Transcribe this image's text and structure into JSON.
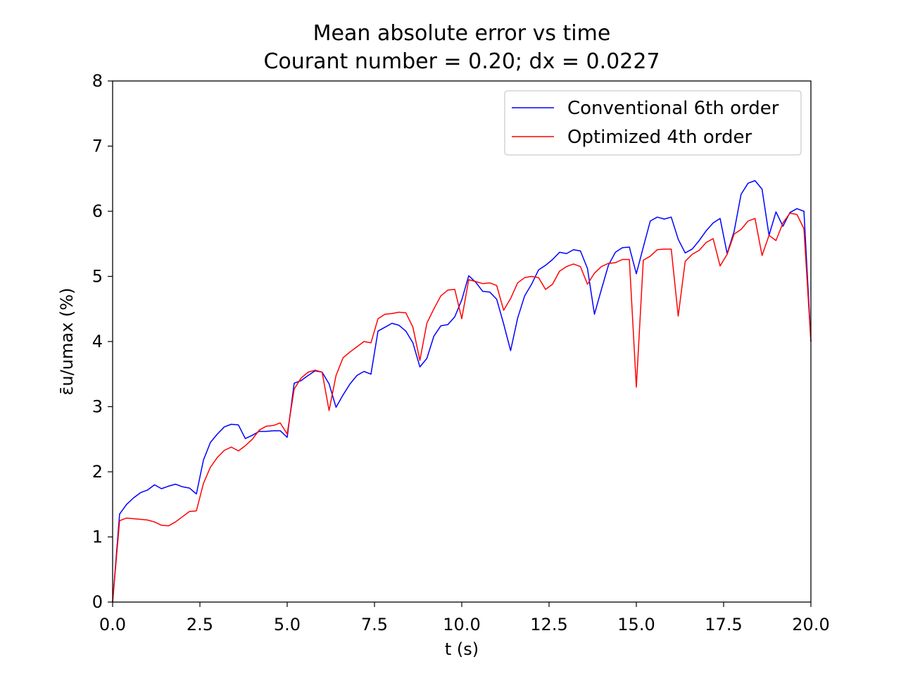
{
  "chart_data": {
    "type": "line",
    "title": "Mean absolute error vs time",
    "subtitle": "Courant number = 0.20; dx = 0.0227",
    "xlabel": "t (s)",
    "ylabel": "ε̄u/umax (%)",
    "xlim": [
      0,
      20
    ],
    "ylim": [
      0,
      8
    ],
    "xticks": [
      "0.0",
      "2.5",
      "5.0",
      "7.5",
      "10.0",
      "12.5",
      "15.0",
      "17.5",
      "20.0"
    ],
    "yticks": [
      "0",
      "1",
      "2",
      "3",
      "4",
      "5",
      "6",
      "7",
      "8"
    ],
    "grid": false,
    "legend_position": "top-right",
    "x": [
      0.0,
      0.2,
      0.4,
      0.6,
      0.8,
      1.0,
      1.2,
      1.4,
      1.6,
      1.8,
      2.0,
      2.2,
      2.4,
      2.6,
      2.8,
      3.0,
      3.2,
      3.4,
      3.6,
      3.8,
      4.0,
      4.2,
      4.4,
      4.6,
      4.8,
      5.0,
      5.2,
      5.4,
      5.6,
      5.8,
      6.0,
      6.2,
      6.4,
      6.6,
      6.8,
      7.0,
      7.2,
      7.4,
      7.6,
      7.8,
      8.0,
      8.2,
      8.4,
      8.6,
      8.8,
      9.0,
      9.2,
      9.4,
      9.6,
      9.8,
      10.0,
      10.2,
      10.4,
      10.6,
      10.8,
      11.0,
      11.2,
      11.4,
      11.6,
      11.8,
      12.0,
      12.2,
      12.4,
      12.6,
      12.8,
      13.0,
      13.2,
      13.4,
      13.6,
      13.8,
      14.0,
      14.2,
      14.4,
      14.6,
      14.8,
      15.0,
      15.2,
      15.4,
      15.6,
      15.8,
      16.0,
      16.2,
      16.4,
      16.6,
      16.8,
      17.0,
      17.2,
      17.4,
      17.6,
      17.8,
      18.0,
      18.2,
      18.4,
      18.6,
      18.8,
      19.0,
      19.2,
      19.4,
      19.6,
      19.8,
      20.0
    ],
    "series": [
      {
        "name": "Conventional 6th order",
        "color": "#0000ff",
        "values": [
          0.0,
          1.35,
          1.5,
          1.6,
          1.68,
          1.72,
          1.8,
          1.74,
          1.78,
          1.81,
          1.77,
          1.75,
          1.66,
          2.18,
          2.45,
          2.58,
          2.69,
          2.73,
          2.72,
          2.51,
          2.56,
          2.62,
          2.62,
          2.63,
          2.63,
          2.53,
          3.36,
          3.4,
          3.48,
          3.55,
          3.53,
          3.35,
          2.99,
          3.18,
          3.35,
          3.48,
          3.54,
          3.5,
          4.16,
          4.22,
          4.28,
          4.25,
          4.16,
          3.98,
          3.61,
          3.74,
          4.08,
          4.24,
          4.26,
          4.38,
          4.64,
          5.01,
          4.91,
          4.77,
          4.76,
          4.65,
          4.27,
          3.86,
          4.36,
          4.7,
          4.88,
          5.1,
          5.17,
          5.26,
          5.37,
          5.35,
          5.41,
          5.39,
          5.12,
          4.42,
          4.8,
          5.17,
          5.37,
          5.44,
          5.45,
          5.04,
          5.45,
          5.85,
          5.91,
          5.88,
          5.91,
          5.57,
          5.36,
          5.42,
          5.55,
          5.7,
          5.82,
          5.89,
          5.35,
          5.69,
          6.26,
          6.43,
          6.47,
          6.34,
          5.63,
          5.99,
          5.77,
          5.98,
          6.04,
          6.0,
          4.0
        ]
      },
      {
        "name": "Optimized 4th order",
        "color": "#ff0000",
        "values": [
          0.0,
          1.25,
          1.29,
          1.28,
          1.27,
          1.26,
          1.23,
          1.18,
          1.17,
          1.23,
          1.31,
          1.39,
          1.4,
          1.82,
          2.07,
          2.22,
          2.33,
          2.38,
          2.32,
          2.4,
          2.5,
          2.64,
          2.7,
          2.71,
          2.75,
          2.58,
          3.27,
          3.44,
          3.53,
          3.56,
          3.53,
          2.94,
          3.48,
          3.75,
          3.84,
          3.92,
          4.0,
          3.98,
          4.35,
          4.42,
          4.43,
          4.45,
          4.44,
          4.22,
          3.71,
          4.28,
          4.5,
          4.7,
          4.79,
          4.8,
          4.35,
          4.95,
          4.92,
          4.89,
          4.9,
          4.86,
          4.48,
          4.66,
          4.9,
          4.98,
          5.0,
          4.98,
          4.8,
          4.88,
          5.08,
          5.15,
          5.19,
          5.15,
          4.88,
          5.05,
          5.15,
          5.2,
          5.21,
          5.26,
          5.26,
          3.3,
          5.25,
          5.31,
          5.41,
          5.42,
          5.42,
          4.39,
          5.23,
          5.34,
          5.4,
          5.52,
          5.58,
          5.16,
          5.34,
          5.65,
          5.72,
          5.85,
          5.89,
          5.32,
          5.63,
          5.55,
          5.82,
          5.97,
          5.95,
          5.73,
          4.0
        ]
      }
    ]
  }
}
